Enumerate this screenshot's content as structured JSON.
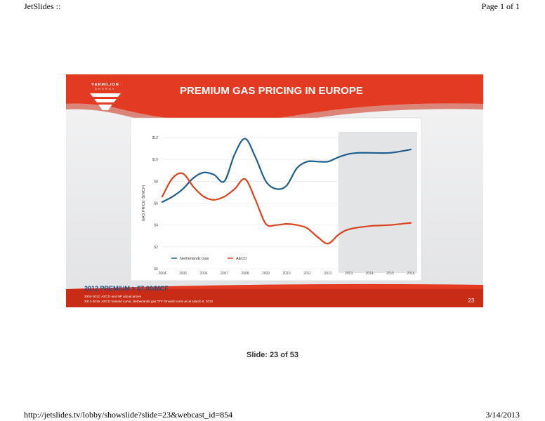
{
  "page": {
    "header_left": "JetSlides ::",
    "header_right": "Page 1 of 1",
    "footer_left": "http://jetslides.tv/lobby/showslide?slide=23&webcast_id=854",
    "footer_right": "3/14/2013",
    "slide_counter": "Slide: 23 of 53"
  },
  "slide": {
    "logo_line1": "VERMILION",
    "logo_line2": "ENERGY",
    "title": "PREMIUM GAS PRICING IN EUROPE",
    "premium": "2012 PREMIUM > $7.00/MCF",
    "footnote1": "2004-2012: AECO and NP actual prices",
    "footnote2": "2013-2016: AECO forward curve, Netherlands gas TTF forward curve as at March 8, 2013",
    "slide_number": "23",
    "colors": {
      "brand_red": "#e33b21",
      "netherlands": "#1f5f8f",
      "aeco": "#d9431e",
      "forecast_shade": "#e3e4e6"
    }
  },
  "chart_data": {
    "type": "line",
    "ylabel": "GAS PRICE ($/MCF)",
    "xlim": [
      2004,
      2016
    ],
    "ylim": [
      0,
      12
    ],
    "yticks": [
      "$0",
      "$2",
      "$4",
      "$6",
      "$8",
      "$10",
      "$12"
    ],
    "xticks": [
      "2004",
      "2005",
      "2006",
      "2007",
      "2008",
      "2009",
      "2010",
      "2011",
      "2012",
      "2013",
      "2014",
      "2015",
      "2016"
    ],
    "forecast_region": [
      2012.5,
      2016
    ],
    "legend_position": "bottom-left",
    "series": [
      {
        "name": "Netherlands Gas",
        "color": "#1f5f8f",
        "points": [
          [
            2004,
            6.1
          ],
          [
            2004.5,
            6.6
          ],
          [
            2005,
            7.3
          ],
          [
            2005.5,
            8.3
          ],
          [
            2006,
            8.8
          ],
          [
            2006.5,
            8.6
          ],
          [
            2007,
            8.0
          ],
          [
            2007.5,
            10.5
          ],
          [
            2008,
            11.9
          ],
          [
            2008.5,
            10.2
          ],
          [
            2009,
            8.0
          ],
          [
            2009.5,
            7.3
          ],
          [
            2010,
            7.6
          ],
          [
            2010.5,
            9.2
          ],
          [
            2011,
            9.8
          ],
          [
            2011.5,
            9.8
          ],
          [
            2012,
            9.8
          ],
          [
            2012.5,
            10.2
          ],
          [
            2013,
            10.5
          ],
          [
            2013.5,
            10.6
          ],
          [
            2014,
            10.6
          ],
          [
            2015,
            10.6
          ],
          [
            2016,
            10.9
          ]
        ]
      },
      {
        "name": "AECO",
        "color": "#d9431e",
        "points": [
          [
            2004,
            6.6
          ],
          [
            2004.5,
            8.3
          ],
          [
            2005,
            8.7
          ],
          [
            2005.5,
            7.5
          ],
          [
            2006,
            6.6
          ],
          [
            2006.5,
            6.3
          ],
          [
            2007,
            6.6
          ],
          [
            2007.5,
            7.3
          ],
          [
            2008,
            8.2
          ],
          [
            2008.5,
            6.3
          ],
          [
            2009,
            4.1
          ],
          [
            2009.5,
            4.0
          ],
          [
            2010,
            4.1
          ],
          [
            2010.5,
            4.0
          ],
          [
            2011,
            3.7
          ],
          [
            2011.5,
            2.9
          ],
          [
            2012,
            2.3
          ],
          [
            2012.5,
            3.1
          ],
          [
            2013,
            3.6
          ],
          [
            2014,
            3.9
          ],
          [
            2015,
            4.0
          ],
          [
            2016,
            4.2
          ]
        ]
      }
    ]
  }
}
